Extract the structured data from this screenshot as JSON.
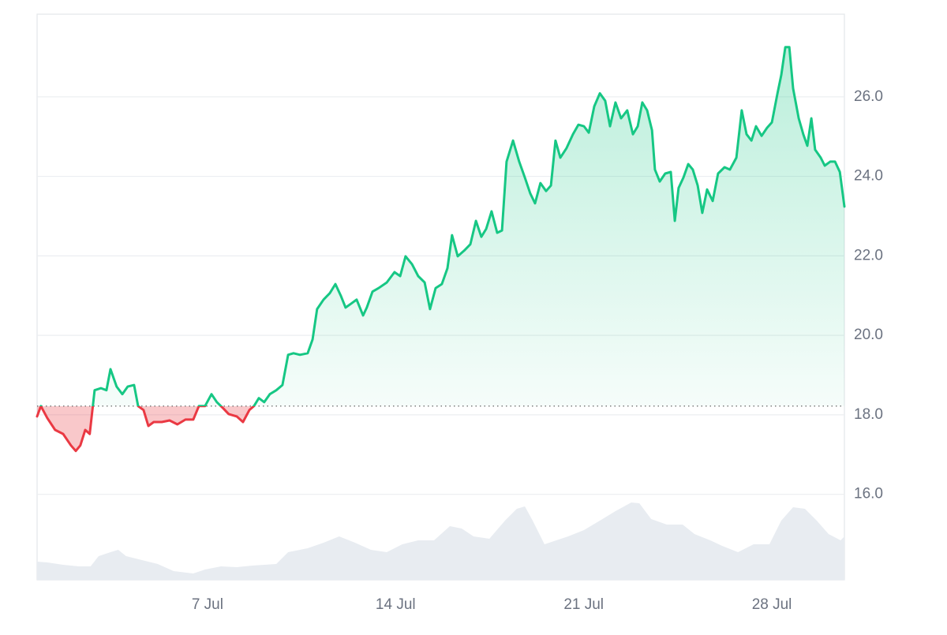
{
  "chart_data": {
    "type": "line",
    "x": [
      0.66,
      0.8,
      1.04,
      1.33,
      1.63,
      1.92,
      2.1,
      2.27,
      2.45,
      2.62,
      2.8,
      3.04,
      3.24,
      3.39,
      3.62,
      3.83,
      4.03,
      4.27,
      4.42,
      4.62,
      4.8,
      5.0,
      5.3,
      5.59,
      5.88,
      6.18,
      6.47,
      6.68,
      6.91,
      7.15,
      7.35,
      7.59,
      7.79,
      8.09,
      8.32,
      8.56,
      8.73,
      8.91,
      9.11,
      9.32,
      9.56,
      9.79,
      10.0,
      10.2,
      10.44,
      10.73,
      10.91,
      11.08,
      11.32,
      11.55,
      11.76,
      11.96,
      12.14,
      12.35,
      12.55,
      12.79,
      12.93,
      13.14,
      13.37,
      13.67,
      13.96,
      14.17,
      14.37,
      14.61,
      14.84,
      15.08,
      15.28,
      15.49,
      15.72,
      15.93,
      16.1,
      16.31,
      16.55,
      16.78,
      16.99,
      17.19,
      17.37,
      17.57,
      17.78,
      17.96,
      18.13,
      18.37,
      18.6,
      18.81,
      19.01,
      19.19,
      19.39,
      19.6,
      19.78,
      19.95,
      20.13,
      20.36,
      20.6,
      20.8,
      21.01,
      21.19,
      21.39,
      21.6,
      21.8,
      21.98,
      22.18,
      22.39,
      22.62,
      22.83,
      23.01,
      23.18,
      23.36,
      23.54,
      23.65,
      23.83,
      24.03,
      24.24,
      24.39,
      24.53,
      24.71,
      24.89,
      25.06,
      25.24,
      25.41,
      25.59,
      25.8,
      26.0,
      26.24,
      26.44,
      26.68,
      26.88,
      27.06,
      27.24,
      27.41,
      27.62,
      27.82,
      28.0,
      28.21,
      28.35,
      28.5,
      28.65,
      28.79,
      29.0,
      29.17,
      29.32,
      29.47,
      29.61,
      29.82,
      29.97,
      30.17,
      30.35,
      30.53,
      30.7
    ],
    "series": [
      {
        "values": [
          17.96,
          18.22,
          17.92,
          17.62,
          17.52,
          17.23,
          17.09,
          17.23,
          17.62,
          17.52,
          18.62,
          18.67,
          18.62,
          19.15,
          18.71,
          18.52,
          18.71,
          18.75,
          18.22,
          18.12,
          17.72,
          17.82,
          17.82,
          17.86,
          17.76,
          17.88,
          17.88,
          18.22,
          18.22,
          18.52,
          18.32,
          18.16,
          18.02,
          17.96,
          17.82,
          18.12,
          18.22,
          18.42,
          18.32,
          18.52,
          18.62,
          18.75,
          19.51,
          19.55,
          19.51,
          19.55,
          19.9,
          20.66,
          20.9,
          21.06,
          21.29,
          21.0,
          20.7,
          20.8,
          20.9,
          20.5,
          20.7,
          21.1,
          21.19,
          21.33,
          21.59,
          21.49,
          21.99,
          21.79,
          21.49,
          21.33,
          20.66,
          21.19,
          21.29,
          21.69,
          22.52,
          21.99,
          22.13,
          22.29,
          22.88,
          22.48,
          22.68,
          23.12,
          22.58,
          22.64,
          24.37,
          24.9,
          24.37,
          23.97,
          23.57,
          23.32,
          23.83,
          23.63,
          23.77,
          24.9,
          24.47,
          24.71,
          25.06,
          25.3,
          25.26,
          25.1,
          25.76,
          26.09,
          25.9,
          25.26,
          25.86,
          25.46,
          25.66,
          25.06,
          25.26,
          25.86,
          25.66,
          25.16,
          24.17,
          23.87,
          24.07,
          24.11,
          22.88,
          23.71,
          23.97,
          24.31,
          24.17,
          23.77,
          23.08,
          23.67,
          23.38,
          24.07,
          24.23,
          24.17,
          24.47,
          25.66,
          25.06,
          24.9,
          25.26,
          25.02,
          25.22,
          25.36,
          26.09,
          26.55,
          27.25,
          27.25,
          26.21,
          25.46,
          25.06,
          24.77,
          25.46,
          24.67,
          24.47,
          24.27,
          24.37,
          24.37,
          24.11,
          23.24
        ],
        "color": "#16c784",
        "below_color": "#ea3943"
      },
      {
        "axis": "y2",
        "color": "#e8ecf1",
        "x": [
          0.66,
          1.04,
          1.63,
          2.21,
          2.65,
          2.95,
          3.39,
          3.68,
          3.97,
          4.56,
          5.15,
          5.74,
          6.47,
          6.91,
          7.5,
          8.09,
          8.67,
          9.56,
          10.0,
          10.73,
          11.32,
          11.9,
          12.49,
          13.08,
          13.67,
          14.25,
          14.84,
          15.43,
          16.02,
          16.46,
          16.9,
          17.49,
          18.07,
          18.51,
          18.81,
          19.1,
          19.54,
          19.98,
          20.42,
          21.01,
          21.6,
          22.18,
          22.77,
          23.07,
          23.51,
          24.09,
          24.68,
          25.12,
          25.71,
          26.15,
          26.74,
          27.32,
          27.91,
          28.35,
          28.79,
          29.23,
          29.67,
          30.11,
          30.56,
          30.7
        ],
        "values": [
          23,
          22,
          19,
          17,
          17,
          30,
          35,
          38,
          30,
          25,
          20,
          11,
          8,
          13,
          17,
          16,
          18,
          20,
          35,
          40,
          47,
          55,
          47,
          38,
          35,
          45,
          50,
          50,
          68,
          65,
          55,
          52,
          75,
          90,
          93,
          75,
          45,
          50,
          55,
          63,
          75,
          87,
          98,
          97,
          77,
          70,
          70,
          58,
          50,
          43,
          35,
          45,
          45,
          75,
          92,
          90,
          75,
          58,
          50,
          55
        ]
      }
    ],
    "baseline": 18.22,
    "xlim": [
      0.66,
      30.7
    ],
    "xticks": [
      {
        "value": 7,
        "label": "7 Jul"
      },
      {
        "value": 14,
        "label": "14 Jul"
      },
      {
        "value": 21,
        "label": "21 Jul"
      },
      {
        "value": 28,
        "label": "28 Jul"
      }
    ],
    "ylim": [
      13.85,
      28.08
    ],
    "yticks": [
      {
        "value": 16,
        "label": "16.0"
      },
      {
        "value": 18,
        "label": "18.0"
      },
      {
        "value": 20,
        "label": "20.0"
      },
      {
        "value": 22,
        "label": "22.0"
      },
      {
        "value": 24,
        "label": "24.0"
      },
      {
        "value": 26,
        "label": "26.0"
      }
    ],
    "y2lim": [
      0,
      100
    ],
    "grid": true
  }
}
